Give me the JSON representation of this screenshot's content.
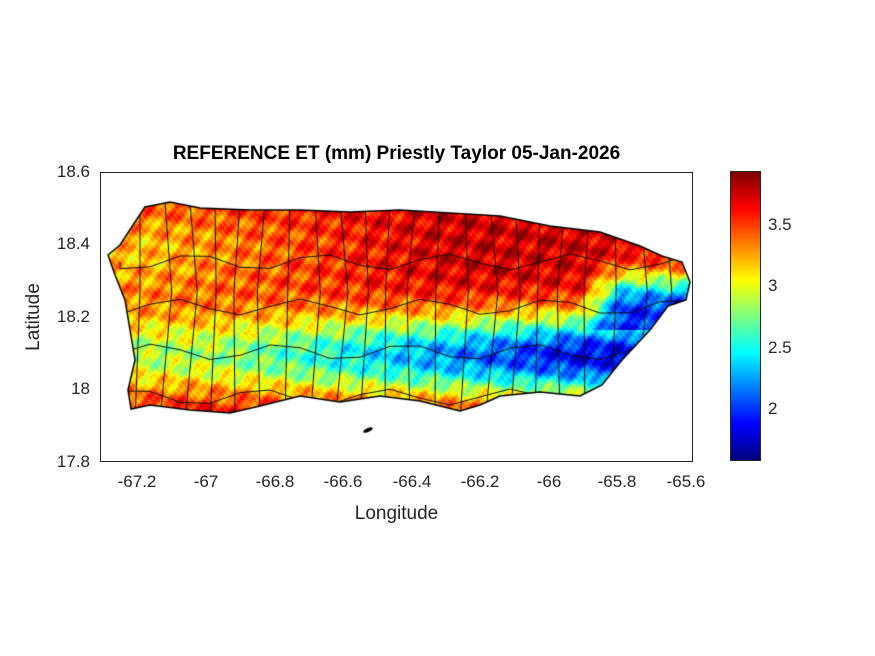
{
  "chart_data": {
    "type": "heatmap",
    "title": "REFERENCE ET (mm) Priestly Taylor 05-Jan-2026",
    "xlabel": "Longitude",
    "ylabel": "Latitude",
    "xlim": [
      -67.31,
      -65.58
    ],
    "ylim": [
      17.8,
      18.6
    ],
    "xticks": [
      "-67.2",
      "-67",
      "-66.8",
      "-66.6",
      "-66.4",
      "-66.2",
      "-66",
      "-65.8",
      "-65.6"
    ],
    "yticks": [
      "18.6",
      "18.4",
      "18.2",
      "18",
      "17.8"
    ],
    "colorbar": {
      "colormap": "jet",
      "range": [
        1.58,
        3.94
      ],
      "ticks": [
        "3.5",
        "3",
        "2.5",
        "2"
      ]
    },
    "pattern": "Highest values (~3.5-3.9) along north coast, especially northeast; lowest (~1.7-2.3) in south-central and southeast interior; ~3.0-3.3 along west and south coasts"
  }
}
